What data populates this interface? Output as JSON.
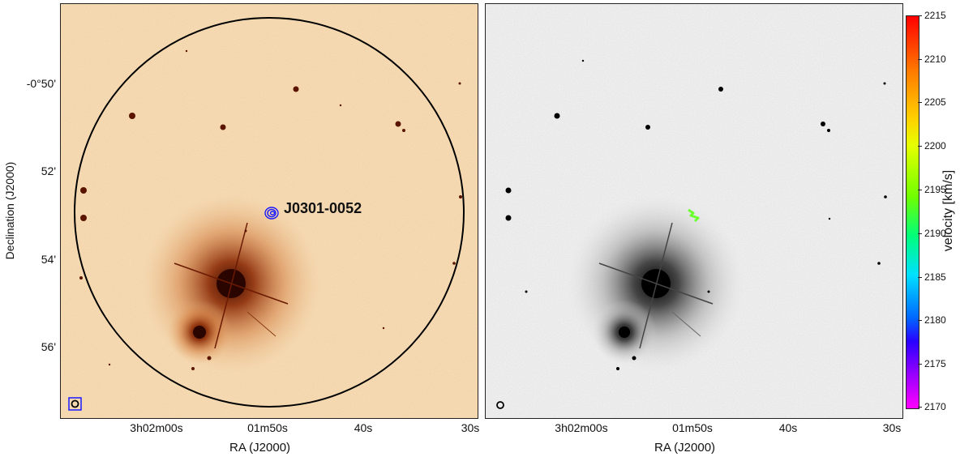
{
  "figure": {
    "left_panel": {
      "y_axis_title": "Declination (J2000)",
      "y_ticks": [
        "-0°50'",
        "52'",
        "54'",
        "56'"
      ],
      "x_ticks": [
        "3h02m00s",
        "01m50s",
        "40s",
        "30s"
      ],
      "x_axis_title": "RA (J2000)",
      "source_label": "J0301-0052"
    },
    "right_panel": {
      "x_ticks": [
        "3h02m00s",
        "01m50s",
        "40s",
        "30s"
      ],
      "x_axis_title": "RA (J2000)"
    },
    "colorbar": {
      "label": "velocity [km/s]",
      "ticks": [
        "2215",
        "2210",
        "2205",
        "2200",
        "2195",
        "2190",
        "2185",
        "2180",
        "2175",
        "2170"
      ]
    }
  }
}
